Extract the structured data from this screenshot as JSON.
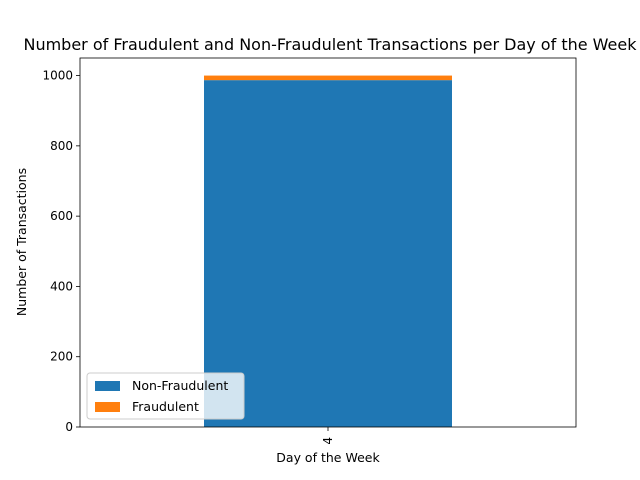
{
  "chart_data": {
    "type": "bar",
    "stacked": true,
    "title": "Number of Fraudulent and Non-Fraudulent Transactions per Day of the Week",
    "xlabel": "Day of the Week",
    "ylabel": "Number of Transactions",
    "categories": [
      "4"
    ],
    "series": [
      {
        "name": "Non-Fraudulent",
        "values": [
          987
        ],
        "color": "#1f77b4"
      },
      {
        "name": "Fraudulent",
        "values": [
          13
        ],
        "color": "#ff7f0e"
      }
    ],
    "ylim": [
      0,
      1050
    ],
    "yticks": [
      0,
      200,
      400,
      600,
      800,
      1000
    ],
    "grid": false,
    "legend_position": "lower-left"
  }
}
